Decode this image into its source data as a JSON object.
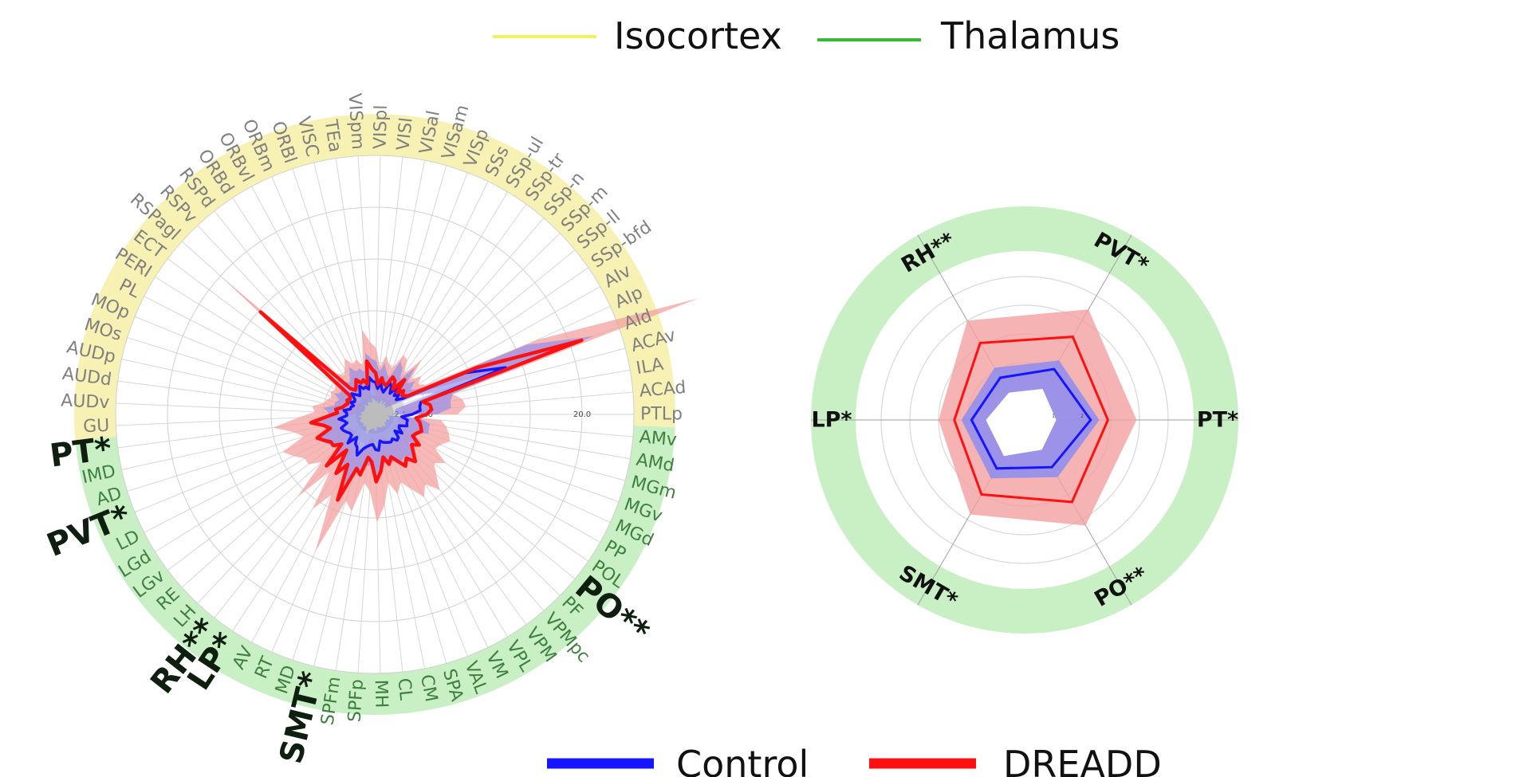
{
  "legend_top": [
    {
      "label": "Isocortex",
      "color": "#f0f060"
    },
    {
      "label": "Thalamus",
      "color": "#33bb33"
    }
  ],
  "legend_bottom": [
    {
      "label": "Control",
      "color": "#1515ff"
    },
    {
      "label": "DREADD",
      "color": "#ff1010"
    }
  ],
  "colors": {
    "isocortex_band": "#f7f2b4",
    "thalamus_band": "#c9efc5",
    "control_line": "#1515ff",
    "dreadd_line": "#ff1010",
    "control_fill": "#8c8cf0",
    "dreadd_fill": "#f4a0a0",
    "grid": "#cccccc",
    "label_gray": "#808080",
    "label_green": "#3f7f3f"
  },
  "chart_data": [
    {
      "type": "radar",
      "name": "left",
      "rlim": [
        0,
        25
      ],
      "radial_ticks": [
        2.5,
        5.0,
        20.0
      ],
      "radial_tick_labels": [
        "2.5",
        "5.0",
        "20.0"
      ],
      "categories": [
        "PTLp",
        "ACAd",
        "ILA",
        "ACAv",
        "AId",
        "AIp",
        "AIv",
        "SSp-bfd",
        "SSp-ll",
        "SSp-m",
        "SSp-n",
        "SSp-tr",
        "SSp-ul",
        "SSs",
        "VISp",
        "VISam",
        "VISal",
        "VISl",
        "VISpl",
        "VISpm",
        "TEa",
        "VISC",
        "ORBl",
        "ORBm",
        "ORBvl",
        "ORBd",
        "RSPd",
        "RSPv",
        "RSPagl",
        "ECT",
        "PERI",
        "PL",
        "MOp",
        "MOs",
        "AUDp",
        "AUDd",
        "AUDv",
        "GU",
        "PT",
        "IMD",
        "AD",
        "PVT",
        "LD",
        "LGd",
        "LGv",
        "RE",
        "LH",
        "RH",
        "LP",
        "AV",
        "RT",
        "MD",
        "SMT",
        "SPFm",
        "SPFp",
        "MH",
        "CL",
        "CM",
        "SPA",
        "VAL",
        "VM",
        "VPL",
        "VPM",
        "VPMpc",
        "PF",
        "PO",
        "POL",
        "PP",
        "MGd",
        "MGv",
        "MGm",
        "AMd",
        "AMv"
      ],
      "groups": {
        "Isocortex": [
          0,
          37
        ],
        "Thalamus": [
          38,
          72
        ]
      },
      "significant": [
        {
          "region": "PT",
          "label": "PT*"
        },
        {
          "region": "PVT",
          "label": "PVT*"
        },
        {
          "region": "RH",
          "label": "RH**"
        },
        {
          "region": "LP",
          "label": "LP*"
        },
        {
          "region": "SMT",
          "label": "SMT*"
        },
        {
          "region": "PO",
          "label": "PO**"
        }
      ],
      "series": [
        {
          "name": "Control",
          "values": [
            3.6,
            4.4,
            4.4,
            4.6,
            13.4,
            9.6,
            3.1,
            2.5,
            3.0,
            2.6,
            3.6,
            2.5,
            3.1,
            3.4,
            2.3,
            2.5,
            3.0,
            2.5,
            3.1,
            3.2,
            3.6,
            2.5,
            2.8,
            2.7,
            3.1,
            2.6,
            2.3,
            2.6,
            3.0,
            2.4,
            2.3,
            2.6,
            2.2,
            2.4,
            2.4,
            3.0,
            2.7,
            2.7,
            3.5,
            3.0,
            2.8,
            3.5,
            3.4,
            3.2,
            3.0,
            3.0,
            3.8,
            2.8,
            3.4,
            3.6,
            4.3,
            3.5,
            3.2,
            3.0,
            2.9,
            3.4,
            3.5,
            2.6,
            2.8,
            2.9,
            3.0,
            3.1,
            2.9,
            3.3,
            3.2,
            2.5,
            3.2,
            2.7,
            2.6,
            3.3,
            3.2,
            3.2,
            2.6
          ],
          "band": [
            2.4,
            3.0,
            3.0,
            3.2,
            9.0,
            6.5,
            2.0,
            1.7,
            2.0,
            1.7,
            2.4,
            1.7,
            2.1,
            2.3,
            1.5,
            1.7,
            2.0,
            1.7,
            2.1,
            2.2,
            2.4,
            1.7,
            1.9,
            1.8,
            2.1,
            1.8,
            1.6,
            1.8,
            2.0,
            1.6,
            1.6,
            1.8,
            1.5,
            1.6,
            1.6,
            2.0,
            1.8,
            1.8,
            2.4,
            2.0,
            1.9,
            2.4,
            2.3,
            2.2,
            2.0,
            2.0,
            2.6,
            1.9,
            2.3,
            2.4,
            2.9,
            2.4,
            2.2,
            2.0,
            2.0,
            2.3,
            2.4,
            1.8,
            1.9,
            2.0,
            2.0,
            2.1,
            2.0,
            2.2,
            2.2,
            1.7,
            2.2,
            1.8,
            1.8,
            2.2,
            2.2,
            2.2,
            1.8
          ]
        },
        {
          "name": "DREADD",
          "values": [
            5.0,
            5.5,
            5.4,
            4.8,
            21.2,
            10.8,
            3.6,
            3.2,
            3.6,
            3.0,
            4.4,
            3.0,
            3.8,
            4.0,
            3.0,
            3.1,
            3.6,
            2.9,
            4.0,
            4.4,
            5.2,
            3.0,
            3.5,
            3.3,
            3.8,
            3.3,
            3.0,
            3.4,
            14.8,
            3.0,
            2.8,
            3.0,
            2.8,
            3.0,
            3.2,
            3.8,
            3.6,
            4.6,
            6.2,
            5.0,
            4.5,
            6.0,
            5.5,
            5.0,
            5.0,
            4.3,
            6.8,
            4.4,
            6.8,
            5.5,
            9.0,
            5.5,
            6.0,
            4.2,
            4.6,
            6.5,
            5.5,
            4.2,
            5.0,
            4.4,
            5.0,
            5.8,
            5.2,
            6.0,
            5.2,
            4.6,
            5.2,
            4.2,
            4.4,
            4.8,
            4.6,
            4.4,
            4.0
          ],
          "band": [
            3.0,
            3.3,
            3.2,
            2.9,
            12.0,
            6.5,
            2.2,
            1.9,
            2.2,
            1.8,
            2.6,
            1.8,
            2.3,
            2.4,
            1.8,
            1.9,
            2.2,
            1.7,
            2.4,
            2.6,
            3.1,
            1.8,
            2.1,
            2.0,
            2.3,
            2.0,
            1.8,
            2.0,
            5.0,
            1.8,
            1.7,
            1.8,
            1.7,
            1.8,
            1.9,
            2.3,
            2.2,
            2.8,
            3.7,
            3.0,
            2.7,
            3.6,
            3.3,
            3.0,
            3.0,
            2.6,
            4.1,
            2.6,
            4.1,
            3.3,
            5.4,
            3.3,
            3.6,
            2.5,
            2.8,
            3.9,
            3.3,
            2.5,
            3.0,
            2.6,
            3.0,
            3.5,
            3.1,
            3.6,
            3.1,
            2.8,
            3.1,
            2.5,
            2.6,
            2.9,
            2.8,
            2.6,
            2.4
          ]
        }
      ]
    },
    {
      "type": "radar",
      "name": "right",
      "rlim": [
        0,
        5
      ],
      "radial_ticks": [
        1,
        2
      ],
      "radial_tick_labels": [
        "1",
        "2"
      ],
      "categories": [
        "PT*",
        "PVT*",
        "RH**",
        "LP*",
        "SMT*",
        "PO**"
      ],
      "groups": {
        "Thalamus": [
          0,
          5
        ]
      },
      "series": [
        {
          "name": "Control",
          "values": [
            2.3,
            2.05,
            1.7,
            1.85,
            1.95,
            1.9
          ],
          "lower": [
            1.1,
            1.25,
            1.1,
            1.35,
            1.45,
            1.2
          ],
          "upper": [
            2.6,
            2.4,
            2.1,
            2.2,
            2.35,
            2.3
          ]
        },
        {
          "name": "DREADD",
          "values": [
            2.9,
            3.35,
            3.1,
            2.45,
            3.0,
            3.3
          ],
          "lower": [
            2.2,
            2.5,
            2.3,
            2.05,
            2.4,
            2.5
          ],
          "upper": [
            3.9,
            4.45,
            4.0,
            3.0,
            3.8,
            4.25
          ]
        }
      ]
    }
  ]
}
